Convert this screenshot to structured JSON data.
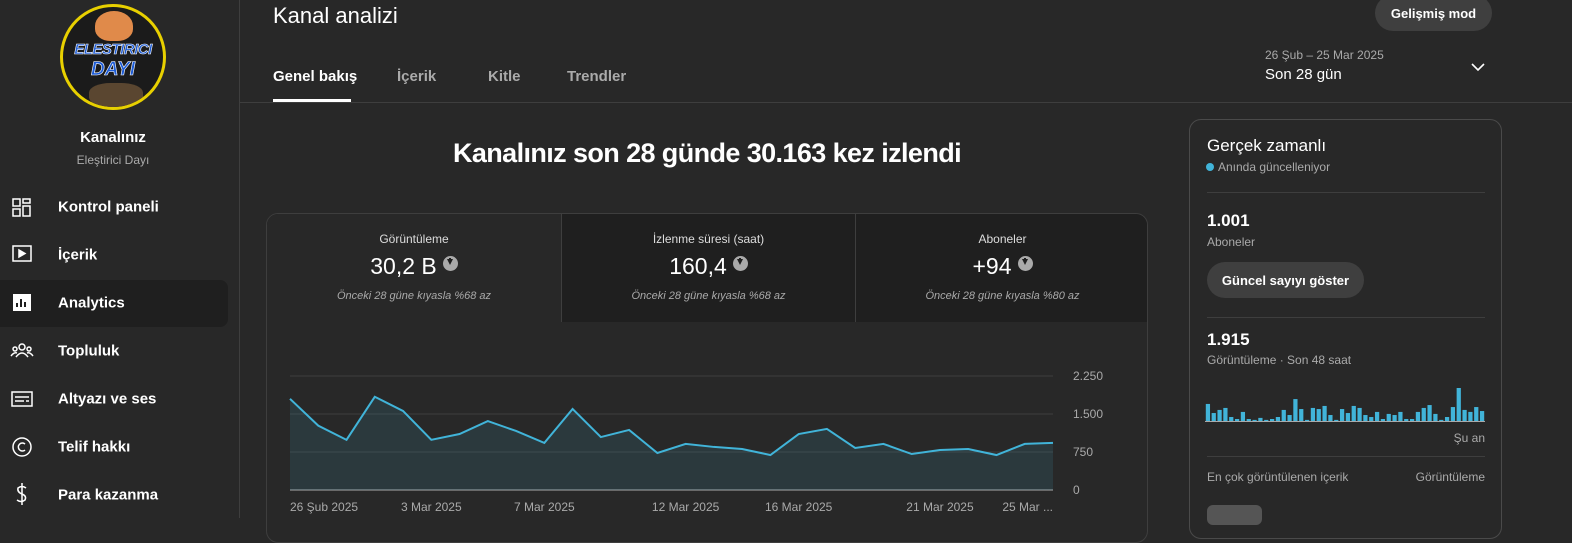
{
  "sidebar": {
    "logo": [
      "ELESTIRICI",
      "DAYI"
    ],
    "channel_label": "Kanalınız",
    "channel_name": "Eleştirici Dayı",
    "nav": [
      "Kontrol paneli",
      "İçerik",
      "Analytics",
      "Topluluk",
      "Altyazı ve ses",
      "Telif hakkı",
      "Para kazanma"
    ],
    "active": 2
  },
  "header": {
    "title": "Kanal analizi",
    "advanced_button": "Gelişmiş mod",
    "tabs": [
      "Genel bakış",
      "İçerik",
      "Kitle",
      "Trendler"
    ],
    "date_range": "26 Şub – 25 Mar 2025",
    "period": "Son 28 gün"
  },
  "headline": "Kanalınız son 28 günde 30.163 kez izlendi",
  "metrics": [
    {
      "label": "Görüntüleme",
      "value": "30,2 B",
      "note": "Önceki 28 güne kıyasla %68 az"
    },
    {
      "label": "İzlenme süresi (saat)",
      "value": "160,4",
      "note": "Önceki 28 güne kıyasla %68 az"
    },
    {
      "label": "Aboneler",
      "value": "+94",
      "note": "Önceki 28 güne kıyasla %80 az"
    }
  ],
  "chart_data": {
    "type": "line",
    "categories": [
      "26 Şub 2025",
      null,
      null,
      null,
      null,
      "3 Mar 2025",
      null,
      null,
      null,
      "7 Mar 2025",
      null,
      null,
      null,
      null,
      "12 Mar 2025",
      null,
      null,
      null,
      "16 Mar 2025",
      null,
      null,
      null,
      null,
      "21 Mar 2025",
      null,
      null,
      null,
      "25 Mar ..."
    ],
    "series": [
      {
        "color": "#41b4d9",
        "values": [
          1800,
          1270,
          990,
          1840,
          1560,
          990,
          1105,
          1360,
          1165,
          930,
          1600,
          1045,
          1185,
          730,
          910,
          850,
          810,
          690,
          1105,
          1205,
          830,
          910,
          710,
          790,
          810,
          690,
          910,
          930
        ]
      }
    ],
    "ylim": [
      0,
      2250
    ],
    "yticks": [
      0,
      750,
      {
        "value": 1500,
        "label": "1.500"
      },
      {
        "value": 2250,
        "label": "2.250"
      }
    ],
    "grid": true
  },
  "realtime": {
    "title": "Gerçek zamanlı",
    "status": "Anında güncelleniyor",
    "subscribers": "1.001",
    "subscribers_label": "Aboneler",
    "show_button": "Güncel sayıyı göster",
    "views": "1.915",
    "views_label": "Görüntüleme · Son 48 saat",
    "views_chart": {
      "type": "bar",
      "color": "#41b4d9",
      "values": [
        77,
        36,
        50,
        59,
        18,
        9,
        41,
        9,
        5,
        14,
        5,
        9,
        18,
        50,
        27,
        99,
        54,
        5,
        59,
        54,
        68,
        27,
        5,
        54,
        36,
        68,
        59,
        27,
        18,
        41,
        9,
        32,
        27,
        41,
        9,
        9,
        41,
        59,
        72,
        32,
        5,
        18,
        63,
        149,
        50,
        41,
        63,
        45
      ]
    },
    "now_label": "Şu an",
    "top_content_label": "En çok görüntülenen içerik",
    "top_content_metric": "Görüntüleme"
  }
}
